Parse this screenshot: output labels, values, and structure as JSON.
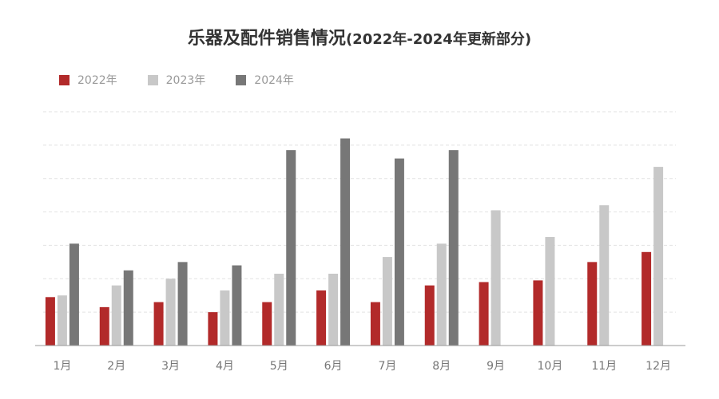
{
  "chart_data": {
    "type": "bar",
    "title": "乐器及配件销售情况",
    "subtitle": "(2022年-2024年更新部分)",
    "categories": [
      "1月",
      "2月",
      "3月",
      "4月",
      "5月",
      "6月",
      "7月",
      "8月",
      "9月",
      "10月",
      "11月",
      "12月"
    ],
    "series": [
      {
        "name": "2022年",
        "color": "#b22a2a",
        "values": [
          14.5,
          11.5,
          13.0,
          10.0,
          13.0,
          16.5,
          13.0,
          18.0,
          19.0,
          19.5,
          25.0,
          28.0
        ]
      },
      {
        "name": "2023年",
        "color": "#c8c8c8",
        "values": [
          15.0,
          18.0,
          20.0,
          16.5,
          21.5,
          21.5,
          26.5,
          30.5,
          40.5,
          32.5,
          42.0,
          53.5
        ]
      },
      {
        "name": "2024年",
        "color": "#777777",
        "values": [
          30.5,
          22.5,
          25.0,
          24.0,
          58.5,
          62.0,
          56.0,
          58.5,
          null,
          null,
          null,
          null
        ]
      }
    ],
    "ylim": [
      0,
      70
    ],
    "grid": true,
    "legend_position": "top-left"
  }
}
